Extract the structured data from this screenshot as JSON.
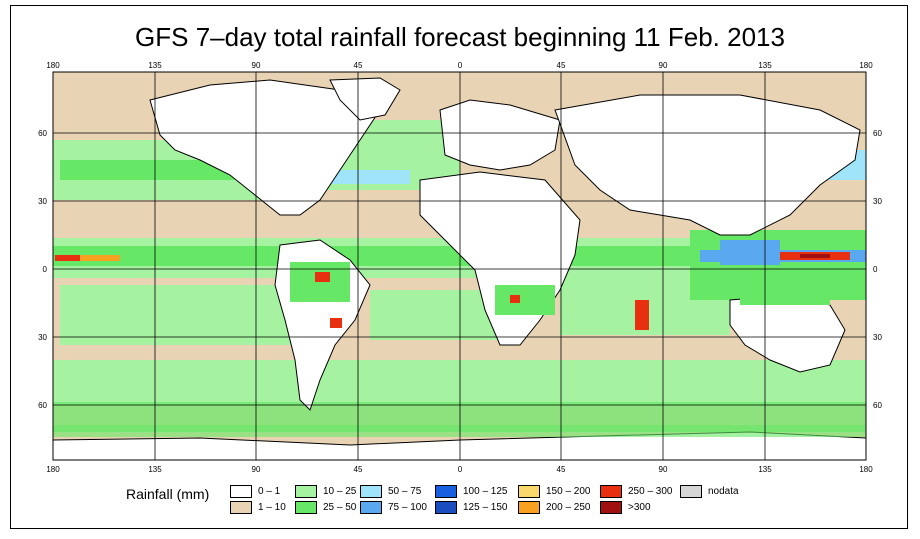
{
  "map": {
    "title": "GFS 7–day total rainfall forecast beginning 11 Feb. 2013",
    "lon_ticks": [
      "180",
      "135",
      "90",
      "45",
      "0",
      "45",
      "90",
      "135",
      "180"
    ],
    "lat_ticks": [
      "60",
      "30",
      "0",
      "30",
      "60"
    ],
    "colors": {
      "ocean_base": "#e8d4b4",
      "land": "#ffffff",
      "green_light": "#a5f2a0",
      "green_mid": "#66e866",
      "blue_light": "#9fe4f8",
      "blue_mid": "#5aa8f0",
      "blue_dark": "#1860e0",
      "yellow": "#f8d86a",
      "orange": "#f8a020",
      "red": "#e83010",
      "dark_red": "#a01010",
      "nodata": "#d6d6d6"
    }
  },
  "legend": {
    "title": "Rainfall (mm)",
    "items": [
      {
        "label": "0 – 1",
        "color": "#ffffff"
      },
      {
        "label": "1 – 10",
        "color": "#e8d4b4"
      },
      {
        "label": "10 – 25",
        "color": "#a5f2a0"
      },
      {
        "label": "25 – 50",
        "color": "#66e866"
      },
      {
        "label": "50 – 75",
        "color": "#9fe4f8"
      },
      {
        "label": "75 – 100",
        "color": "#5aa8f0"
      },
      {
        "label": "100 – 125",
        "color": "#1860e0"
      },
      {
        "label": "125 – 150",
        "color": "#1a4dc0"
      },
      {
        "label": "150 – 200",
        "color": "#f8d86a"
      },
      {
        "label": "200 – 250",
        "color": "#f8a020"
      },
      {
        "label": "250 – 300",
        "color": "#e83010"
      },
      {
        "label": ">300",
        "color": "#a01010"
      },
      {
        "label": "nodata",
        "color": "#d6d6d6"
      }
    ]
  }
}
